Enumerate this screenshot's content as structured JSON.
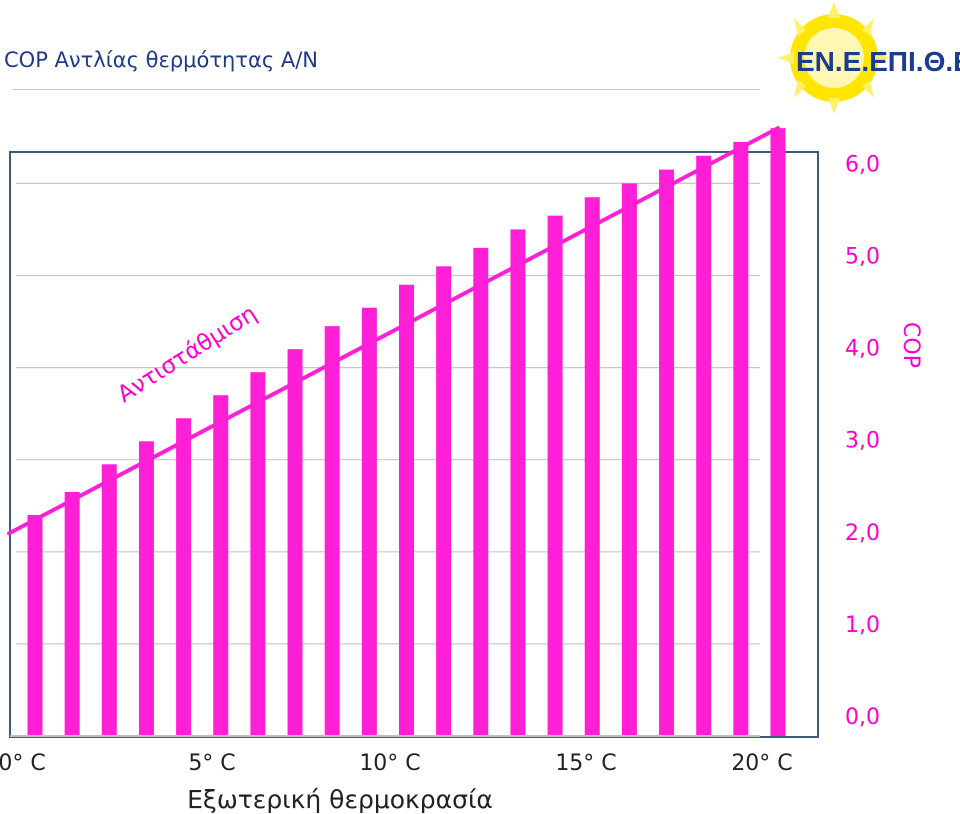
{
  "page": {
    "title": "COP Αντλίας θερμότητας Α/Ν"
  },
  "logo": {
    "text": "ΕΝ.Ε.ΕΠΙ.Θ.Ε.",
    "icon": "sun-icon",
    "colors": {
      "sun": "#ffe500",
      "text": "#1c3c8f"
    }
  },
  "chart_data": {
    "type": "bar",
    "x": [
      0,
      1,
      2,
      3,
      4,
      5,
      6,
      7,
      8,
      9,
      10,
      11,
      12,
      13,
      14,
      15,
      16,
      17,
      18,
      19,
      20
    ],
    "values": [
      2.4,
      2.65,
      2.95,
      3.2,
      3.45,
      3.7,
      3.95,
      4.2,
      4.45,
      4.65,
      4.9,
      5.1,
      5.3,
      5.5,
      5.65,
      5.85,
      6.0,
      6.15,
      6.3,
      6.45,
      6.6
    ],
    "xticks": [
      "0° C",
      "5° C",
      "10° C",
      "15° C",
      "20° C"
    ],
    "yticks": [
      "0,0",
      "1,0",
      "2,0",
      "3,0",
      "4,0",
      "5,0",
      "6,0"
    ],
    "ylim": [
      0,
      6.3
    ],
    "xlabel": "Εξωτερική θερμοκρασία",
    "ylabel": "COP",
    "annotation": "Αντιστάθμιση",
    "grid": true,
    "y_axis_side": "right",
    "colors": {
      "bars": "#ff1fd6",
      "line": "#ff1fd6",
      "frame": "#3b5a82",
      "grid": "#c8c8c8"
    }
  }
}
